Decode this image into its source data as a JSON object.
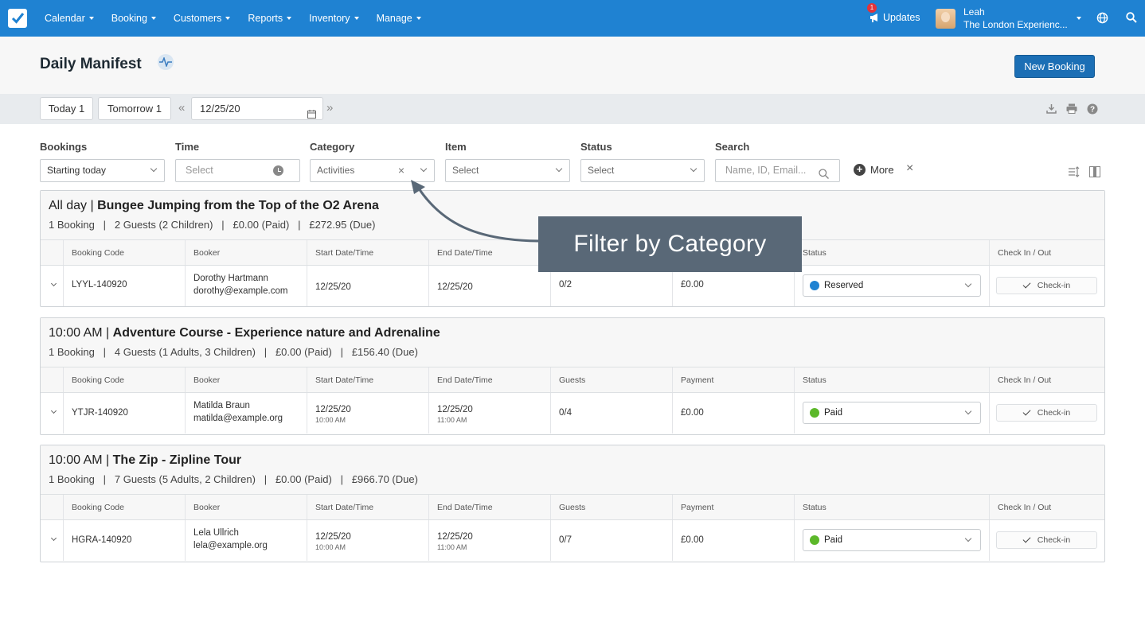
{
  "nav": {
    "menu": [
      "Calendar",
      "Booking",
      "Customers",
      "Reports",
      "Inventory",
      "Manage"
    ],
    "updates_label": "Updates",
    "updates_badge": "1",
    "user_name": "Leah",
    "user_org": "The London Experienc..."
  },
  "header": {
    "title": "Daily Manifest",
    "new_booking": "New Booking"
  },
  "datebar": {
    "today": "Today 1",
    "tomorrow": "Tomorrow 1",
    "prev": "«",
    "next": "»",
    "date": "12/25/20"
  },
  "filters": {
    "bookings": {
      "label": "Bookings",
      "value": "Starting today"
    },
    "time": {
      "label": "Time",
      "placeholder": "Select"
    },
    "category": {
      "label": "Category",
      "value": "Activities"
    },
    "item": {
      "label": "Item",
      "placeholder": "Select"
    },
    "status": {
      "label": "Status",
      "placeholder": "Select"
    },
    "search": {
      "label": "Search",
      "placeholder": "Name, ID, Email..."
    },
    "more": "More"
  },
  "columns": [
    "Booking Code",
    "Booker",
    "Start Date/Time",
    "End Date/Time",
    "Guests",
    "Payment",
    "Status",
    "Check In / Out"
  ],
  "groups": [
    {
      "time": "All day |",
      "name": "Bungee Jumping from the Top of the O2 Arena",
      "summary": "1 Booking   |   2 Guests (2 Children)   |   £0.00 (Paid)   |   £272.95 (Due)",
      "row": {
        "code": "LYYL-140920",
        "booker_name": "Dorothy Hartmann",
        "booker_email": "dorothy@example.com",
        "start_date": "12/25/20",
        "start_time": "",
        "end_date": "12/25/20",
        "end_time": "",
        "guests": "0/2",
        "payment": "£0.00",
        "status": "Reserved",
        "status_color": "#1f82d2",
        "checkin": "Check-in"
      }
    },
    {
      "time": "10:00 AM |",
      "name": "Adventure Course - Experience nature and Adrenaline",
      "summary": "1 Booking   |   4 Guests (1 Adults, 3 Children)   |   £0.00 (Paid)   |   £156.40 (Due)",
      "row": {
        "code": "YTJR-140920",
        "booker_name": "Matilda Braun",
        "booker_email": "matilda@example.org",
        "start_date": "12/25/20",
        "start_time": "10:00 AM",
        "end_date": "12/25/20",
        "end_time": "11:00 AM",
        "guests": "0/4",
        "payment": "£0.00",
        "status": "Paid",
        "status_color": "#5cb82a",
        "checkin": "Check-in"
      }
    },
    {
      "time": "10:00 AM |",
      "name": "The Zip - Zipline Tour",
      "summary": "1 Booking   |   7 Guests (5 Adults, 2 Children)   |   £0.00 (Paid)   |   £966.70 (Due)",
      "row": {
        "code": "HGRA-140920",
        "booker_name": "Lela Ullrich",
        "booker_email": "lela@example.org",
        "start_date": "12/25/20",
        "start_time": "10:00 AM",
        "end_date": "12/25/20",
        "end_time": "11:00 AM",
        "guests": "0/7",
        "payment": "£0.00",
        "status": "Paid",
        "status_color": "#5cb82a",
        "checkin": "Check-in"
      }
    }
  ],
  "callout": "Filter by Category",
  "colors": {
    "nav": "#1f82d2",
    "primary_button": "#1c6fb5",
    "reserved": "#1f82d2",
    "paid": "#5cb82a",
    "callout": "#596877"
  }
}
